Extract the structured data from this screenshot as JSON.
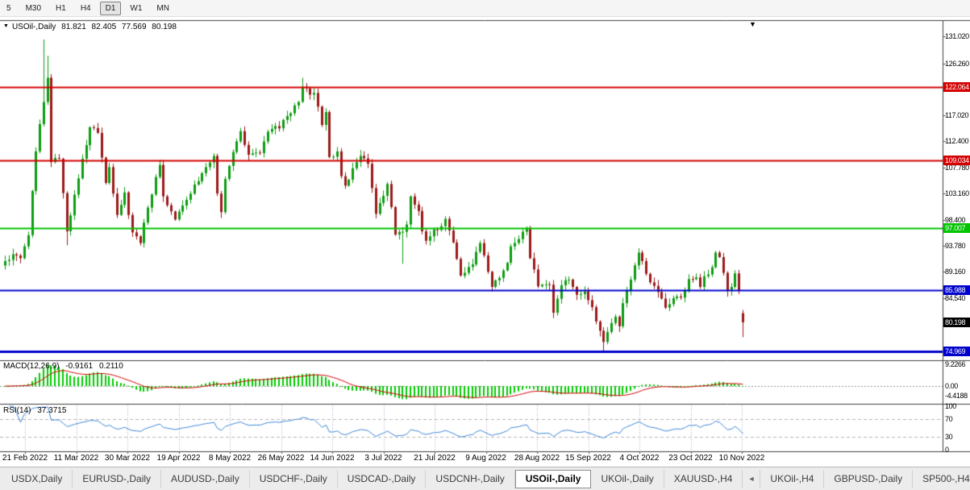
{
  "toolbar": {
    "periods": [
      {
        "label": "5",
        "active": false
      },
      {
        "label": "M30",
        "active": false
      },
      {
        "label": "H1",
        "active": false
      },
      {
        "label": "H4",
        "active": false
      },
      {
        "label": "D1",
        "active": true
      },
      {
        "label": "W1",
        "active": false
      },
      {
        "label": "MN",
        "active": false
      }
    ]
  },
  "chart": {
    "title": "USOil-,Daily",
    "ohlc": {
      "open": "81.821",
      "high": "82.405",
      "low": "77.569",
      "close": "80.198"
    }
  },
  "price_axis": {
    "ticks": [
      "131.020",
      "126.260",
      "117.020",
      "112.400",
      "107.780",
      "103.160",
      "98.400",
      "93.780",
      "89.160",
      "84.540"
    ]
  },
  "hlines": [
    {
      "label": "122.064",
      "price": 122.064,
      "color": "#d40000",
      "thickness": 2
    },
    {
      "label": "109.034",
      "price": 109.034,
      "color": "#d40000",
      "thickness": 2
    },
    {
      "label": "97.007",
      "price": 97.007,
      "color": "#00c400",
      "thickness": 2
    },
    {
      "label": "85.988",
      "price": 85.988,
      "color": "#0000cc",
      "thickness": 2
    },
    {
      "label": "74.969",
      "price": 74.969,
      "color": "#0000cc",
      "thickness": 3
    }
  ],
  "current_price_tag": {
    "label": "80.198",
    "price": 80.198,
    "color": "#000000"
  },
  "macd_panel": {
    "name": "MACD(12,26,9)",
    "value_main": "-0.9161",
    "value_signal": "0.2110",
    "axis": [
      "9.2266",
      "0.00",
      "-4.4188"
    ]
  },
  "rsi_panel": {
    "name": "RSI(14)",
    "value": "37.3715",
    "axis": [
      "100",
      "70",
      "30",
      "0"
    ],
    "levels": [
      70,
      30
    ]
  },
  "date_axis": [
    "21 Feb 2022",
    "11 Mar 2022",
    "30 Mar 2022",
    "19 Apr 2022",
    "8 May 2022",
    "26 May 2022",
    "14 Jun 2022",
    "3 Jul 2022",
    "21 Jul 2022",
    "9 Aug 2022",
    "28 Aug 2022",
    "15 Sep 2022",
    "4 Oct 2022",
    "23 Oct 2022",
    "10 Nov 2022"
  ],
  "tabs": [
    {
      "label": "USDX,Daily",
      "active": false
    },
    {
      "label": "EURUSD-,Daily",
      "active": false
    },
    {
      "label": "AUDUSD-,Daily",
      "active": false
    },
    {
      "label": "USDCHF-,Daily",
      "active": false
    },
    {
      "label": "USDCAD-,Daily",
      "active": false
    },
    {
      "label": "USDCNH-,Daily",
      "active": false
    },
    {
      "label": "USOil-,Daily",
      "active": true
    },
    {
      "label": "UKOil-,Daily",
      "active": false
    },
    {
      "label": "XAUUSD-,H4",
      "active": false
    },
    {
      "label": "◄",
      "scroll": true
    },
    {
      "label": "UKOil-,H4",
      "active": false
    },
    {
      "label": "GBPUSD-,Daily",
      "active": false
    },
    {
      "label": "SP500-,H4",
      "active": false
    }
  ],
  "colors": {
    "bull": "#0e9c12",
    "bear": "#9c1a1a"
  },
  "chart_data": [
    {
      "type": "candlestick",
      "title": "USOil-,Daily",
      "symbol": "USOil-",
      "timeframe": "Daily",
      "bar_count": 192,
      "ylim": [
        73.6,
        133.8
      ],
      "x_tick_labels": [
        "21 Feb 2022",
        "11 Mar 2022",
        "30 Mar 2022",
        "19 Apr 2022",
        "8 May 2022",
        "26 May 2022",
        "14 Jun 2022",
        "3 Jul 2022",
        "21 Jul 2022",
        "9 Aug 2022",
        "28 Aug 2022",
        "15 Sep 2022",
        "4 Oct 2022",
        "23 Oct 2022",
        "10 Nov 2022"
      ],
      "hlines_prices": [
        122.064,
        109.034,
        97.007,
        85.988,
        74.969
      ],
      "current_price": 80.198,
      "last_candle": {
        "open": 81.821,
        "high": 82.405,
        "low": 77.569,
        "close": 80.198
      },
      "close_anchors": [
        [
          0,
          91.1
        ],
        [
          2,
          92.3
        ],
        [
          4,
          91.6
        ],
        [
          6,
          95.7
        ],
        [
          8,
          110.6
        ],
        [
          10,
          119.4
        ],
        [
          11,
          123.7
        ],
        [
          12,
          108.7
        ],
        [
          14,
          109.3
        ],
        [
          16,
          96.4
        ],
        [
          18,
          102.9
        ],
        [
          20,
          109.3
        ],
        [
          22,
          114.9
        ],
        [
          24,
          113.9
        ],
        [
          26,
          105.0
        ],
        [
          27,
          107.8
        ],
        [
          29,
          99.3
        ],
        [
          31,
          103.3
        ],
        [
          33,
          96.2
        ],
        [
          35,
          94.3
        ],
        [
          37,
          100.6
        ],
        [
          40,
          108.2
        ],
        [
          41,
          102.6
        ],
        [
          44,
          98.5
        ],
        [
          47,
          102.0
        ],
        [
          49,
          104.7
        ],
        [
          52,
          107.8
        ],
        [
          54,
          109.8
        ],
        [
          55,
          103.1
        ],
        [
          56,
          99.8
        ],
        [
          57,
          105.7
        ],
        [
          59,
          110.5
        ],
        [
          61,
          114.2
        ],
        [
          63,
          110.0
        ],
        [
          66,
          110.3
        ],
        [
          68,
          114.1
        ],
        [
          70,
          115.1
        ],
        [
          71,
          114.7
        ],
        [
          73,
          116.9
        ],
        [
          76,
          119.4
        ],
        [
          77,
          122.1
        ],
        [
          79,
          120.7
        ],
        [
          80,
          121.0
        ],
        [
          82,
          115.3
        ],
        [
          83,
          117.6
        ],
        [
          84,
          109.6
        ],
        [
          86,
          110.6
        ],
        [
          87,
          106.2
        ],
        [
          88,
          104.5
        ],
        [
          90,
          107.6
        ],
        [
          92,
          109.8
        ],
        [
          94,
          108.4
        ],
        [
          96,
          99.5
        ],
        [
          98,
          102.7
        ],
        [
          99,
          104.8
        ],
        [
          101,
          95.8
        ],
        [
          103,
          96.3
        ],
        [
          104,
          97.6
        ],
        [
          105,
          102.6
        ],
        [
          107,
          100.0
        ],
        [
          108,
          96.4
        ],
        [
          109,
          94.7
        ],
        [
          111,
          96.7
        ],
        [
          113,
          97.3
        ],
        [
          114,
          98.6
        ],
        [
          116,
          94.4
        ],
        [
          118,
          88.5
        ],
        [
          119,
          89.0
        ],
        [
          121,
          90.5
        ],
        [
          123,
          94.3
        ],
        [
          124,
          92.1
        ],
        [
          126,
          86.5
        ],
        [
          128,
          88.1
        ],
        [
          130,
          90.8
        ],
        [
          131,
          93.7
        ],
        [
          133,
          95.0
        ],
        [
          135,
          97.0
        ],
        [
          136,
          91.6
        ],
        [
          137,
          89.6
        ],
        [
          138,
          86.6
        ],
        [
          139,
          86.9
        ],
        [
          141,
          86.9
        ],
        [
          142,
          81.9
        ],
        [
          144,
          86.8
        ],
        [
          146,
          87.8
        ],
        [
          148,
          85.1
        ],
        [
          150,
          85.7
        ],
        [
          152,
          82.9
        ],
        [
          154,
          78.7
        ],
        [
          155,
          76.7
        ],
        [
          156,
          78.5
        ],
        [
          158,
          81.2
        ],
        [
          159,
          79.5
        ],
        [
          160,
          83.6
        ],
        [
          162,
          87.8
        ],
        [
          164,
          92.6
        ],
        [
          165,
          91.1
        ],
        [
          167,
          87.3
        ],
        [
          169,
          85.6
        ],
        [
          171,
          82.8
        ],
        [
          173,
          84.5
        ],
        [
          175,
          84.6
        ],
        [
          177,
          87.9
        ],
        [
          179,
          88.2
        ],
        [
          180,
          86.5
        ],
        [
          181,
          88.4
        ],
        [
          183,
          90.0
        ],
        [
          184,
          92.6
        ],
        [
          185,
          91.8
        ],
        [
          186,
          89.0
        ],
        [
          187,
          85.8
        ],
        [
          188,
          86.5
        ],
        [
          189,
          88.9
        ],
        [
          190,
          85.9
        ],
        [
          191,
          80.198
        ]
      ],
      "wick_spikes": [
        [
          10,
          "high",
          130.5
        ],
        [
          11,
          "high",
          127.6
        ],
        [
          16,
          "low",
          93.9
        ],
        [
          77,
          "high",
          123.7
        ],
        [
          103,
          "low",
          90.6
        ],
        [
          155,
          "low",
          75.1
        ]
      ]
    },
    {
      "type": "macd",
      "name": "MACD(12,26,9)",
      "fast": 12,
      "slow": 26,
      "signal": 9,
      "current_macd": -0.9161,
      "current_signal": 0.211,
      "y_axis_labels": [
        9.2266,
        0.0,
        -4.4188
      ],
      "histogram_color": "#00cc00",
      "signal_color": "#d40000"
    },
    {
      "type": "rsi",
      "name": "RSI(14)",
      "period": 14,
      "current": 37.3715,
      "range": [
        0,
        100
      ],
      "levels": [
        70,
        30
      ],
      "y_axis_labels": [
        100,
        70,
        30,
        0
      ],
      "line_color": "#3d85d8"
    }
  ]
}
